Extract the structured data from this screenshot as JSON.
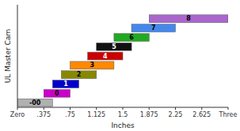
{
  "chart_data": {
    "type": "bar",
    "orientation": "horizontal",
    "title": "",
    "xlabel": "Inches",
    "ylabel": "UL Master Cam",
    "categories": [
      "-00",
      "0",
      "1",
      "2",
      "3",
      "4",
      "5",
      "6",
      "7",
      "8"
    ],
    "start": [
      0.0,
      0.375,
      0.5,
      0.625,
      0.75,
      1.0,
      1.125,
      1.375,
      1.625,
      1.875
    ],
    "end": [
      0.5,
      0.75,
      0.875,
      1.125,
      1.375,
      1.5,
      1.625,
      1.875,
      2.25,
      3.0
    ],
    "colors": [
      "#b0b0b0",
      "#cc00cc",
      "#0000cc",
      "#888800",
      "#ff8800",
      "#cc0000",
      "#111111",
      "#22aa22",
      "#4488ee",
      "#aa66cc"
    ],
    "xlim": [
      0,
      3.0
    ],
    "xticks": [
      {
        "value": 0,
        "label": "Zero"
      },
      {
        "value": 0.375,
        "label": ".375"
      },
      {
        "value": 0.75,
        "label": ".75"
      },
      1.125,
      1.5,
      1.875,
      2.25,
      2.625,
      {
        "value": 3.0,
        "label": "Three"
      }
    ],
    "data_labels": true,
    "tick_labels": "x",
    "grid": false
  }
}
